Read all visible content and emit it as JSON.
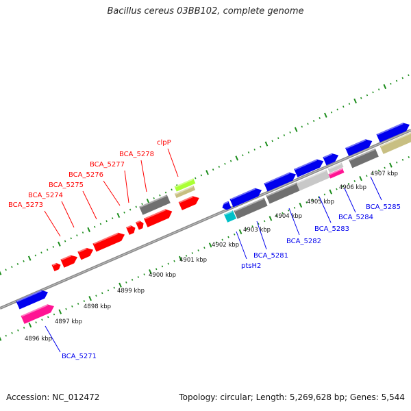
{
  "title": "Bacillus cereus 03BB102, complete genome",
  "footer": {
    "accession": "Accession: NC_012472",
    "summary": "Topology: circular; Length: 5,269,628 bp; Genes: 5,544"
  },
  "colors": {
    "red": "#ff0000",
    "blue": "#0000ee",
    "magenta": "#ff1493",
    "dark_gray": "#707070",
    "light_gray": "#c8c8c8",
    "cyan": "#00c0c8",
    "lime": "#aaff33",
    "khaki": "#c8bf82",
    "tick_green": "#1a8c1a",
    "backbone": "#888888"
  },
  "scale_labels": [
    "4896 kbp",
    "4897 kbp",
    "4898 kbp",
    "4899 kbp",
    "4900 kbp",
    "4901 kbp",
    "4902 kbp",
    "4903 kbp",
    "4904 kbp",
    "4905 kbp",
    "4906 kbp",
    "4907 kbp"
  ],
  "top_labels": [
    {
      "text": "BCA_5273",
      "color": "red"
    },
    {
      "text": "BCA_5274",
      "color": "red"
    },
    {
      "text": "BCA_5275",
      "color": "red"
    },
    {
      "text": "BCA_5276",
      "color": "red"
    },
    {
      "text": "BCA_5277",
      "color": "red"
    },
    {
      "text": "BCA_5278",
      "color": "red"
    },
    {
      "text": "clpP",
      "color": "red"
    }
  ],
  "bottom_labels": [
    {
      "text": "BCA_5271",
      "color": "blue"
    },
    {
      "text": "ptsH2",
      "color": "blue"
    },
    {
      "text": "BCA_5281",
      "color": "blue"
    },
    {
      "text": "BCA_5282",
      "color": "blue"
    },
    {
      "text": "BCA_5283",
      "color": "blue"
    },
    {
      "text": "BCA_5284",
      "color": "blue"
    },
    {
      "text": "BCA_5285",
      "color": "blue"
    }
  ]
}
